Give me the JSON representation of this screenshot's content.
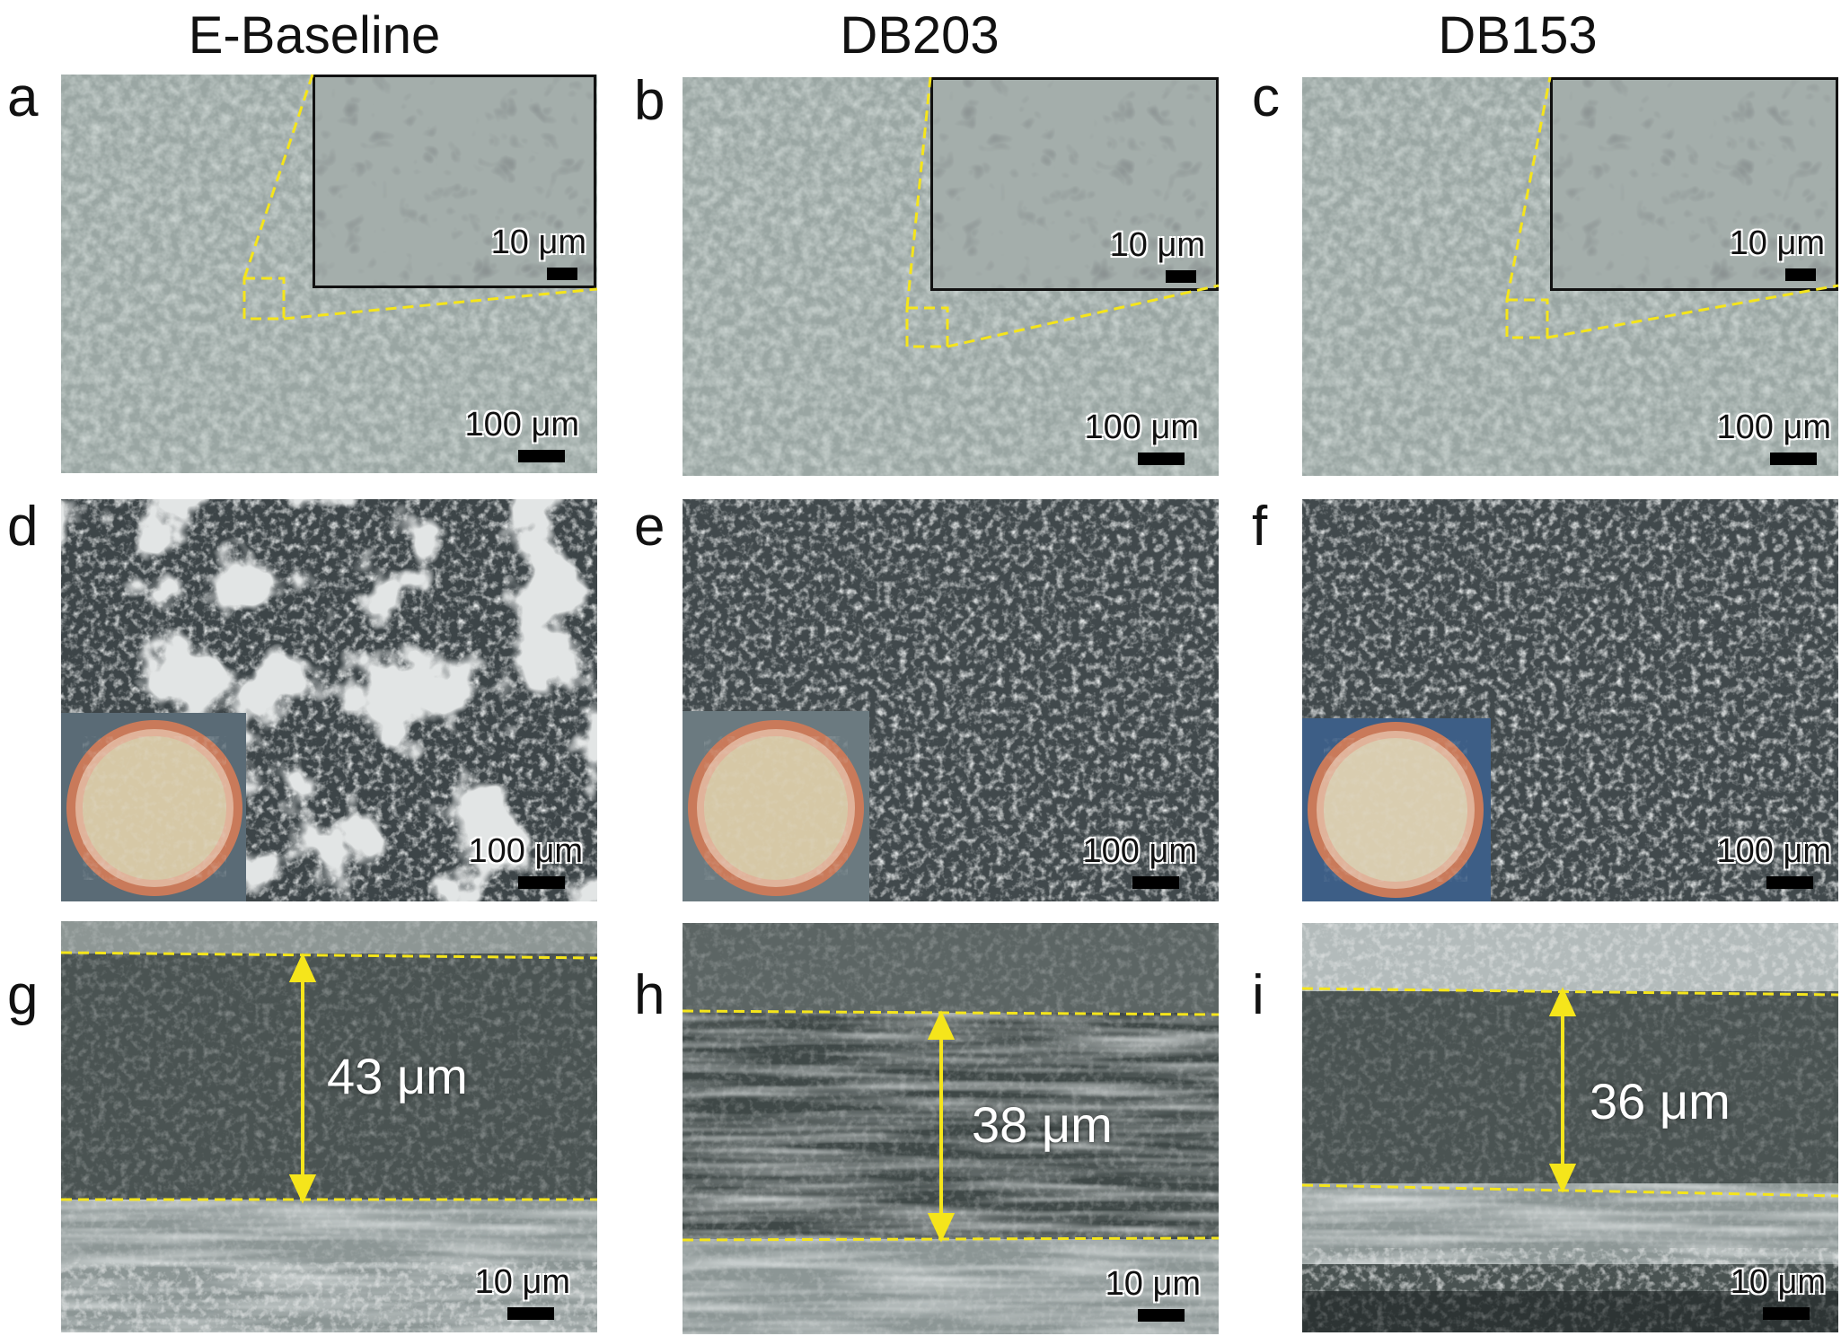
{
  "columns": {
    "col1_title": "E-Baseline",
    "col2_title": "DB203",
    "col3_title": "DB153"
  },
  "panels": {
    "a": {
      "letter": "a",
      "scale": "100 μm",
      "inset_scale": "10 μm"
    },
    "b": {
      "letter": "b",
      "scale": "100 μm",
      "inset_scale": "10 μm"
    },
    "c": {
      "letter": "c",
      "scale": "100 μm",
      "inset_scale": "10 μm"
    },
    "d": {
      "letter": "d",
      "scale": "100 μm"
    },
    "e": {
      "letter": "e",
      "scale": "100 μm"
    },
    "f": {
      "letter": "f",
      "scale": "100 μm"
    },
    "g": {
      "letter": "g",
      "scale": "10 μm",
      "thickness": "43 μm"
    },
    "h": {
      "letter": "h",
      "scale": "10 μm",
      "thickness": "38 μm"
    },
    "i": {
      "letter": "i",
      "scale": "10 μm",
      "thickness": "36 μm"
    }
  },
  "colors": {
    "sem_top_surface": "#9aa6a3",
    "sem_dark_surface": "#3d4548",
    "sem_light_patch": "#b8bfbf",
    "cross_section": "#4a5352",
    "guide_lines": "#f5e51b",
    "coin_copper": "#c97a5a",
    "coin_electrode": "#d6c8a6"
  }
}
